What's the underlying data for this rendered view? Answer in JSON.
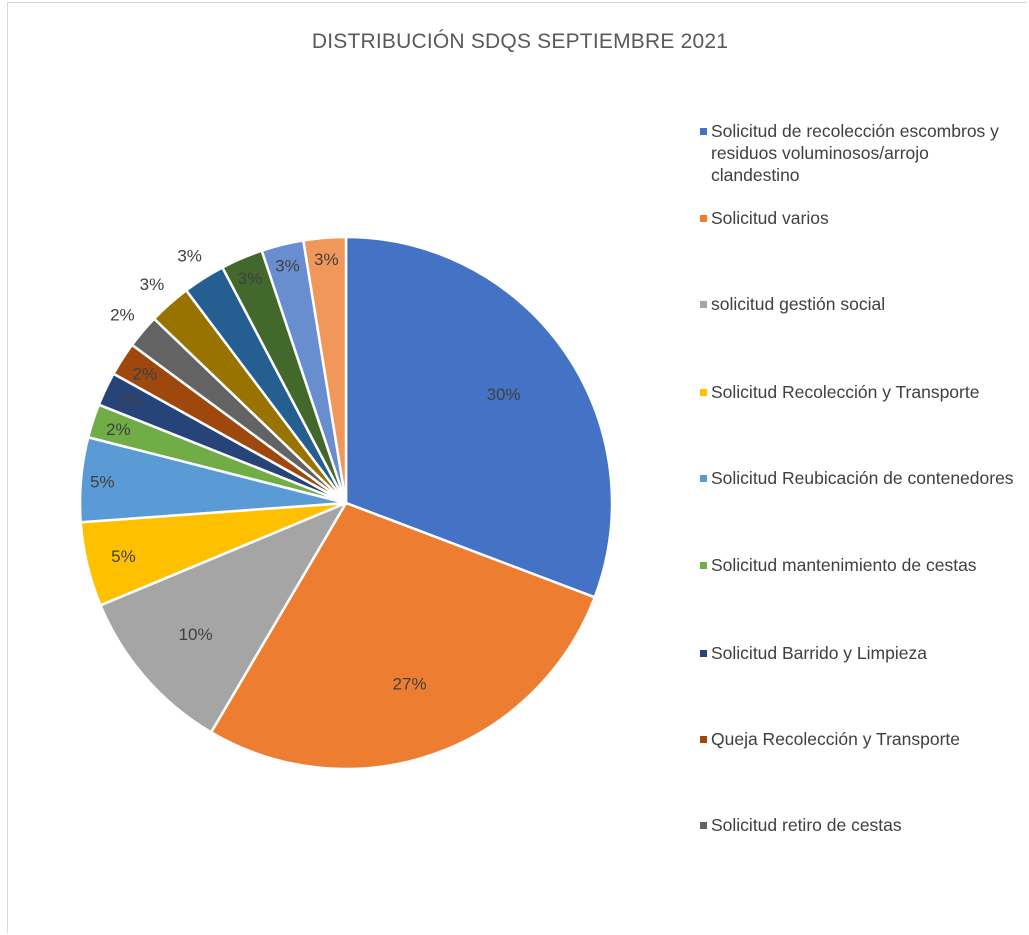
{
  "chart_data": {
    "type": "pie",
    "title": "DISTRIBUCIÓN SDQS SEPTIEMBRE 2021",
    "legend_position": "right",
    "slices": [
      {
        "name": "Solicitud de recolección escombros y residuos voluminosos/arrojo clandestino",
        "value": 30,
        "label": "30%",
        "color": "#4472C4"
      },
      {
        "name": "Solicitud varios",
        "value": 27,
        "label": "27%",
        "color": "#ED7D31"
      },
      {
        "name": "solicitud gestión social",
        "value": 10,
        "label": "10%",
        "color": "#A5A5A5"
      },
      {
        "name": "Solicitud Recolección y Transporte",
        "value": 5,
        "label": "5%",
        "color": "#FFC000"
      },
      {
        "name": "Solicitud Reubicación de contenedores",
        "value": 5,
        "label": "5%",
        "color": "#5B9BD5"
      },
      {
        "name": "Solicitud mantenimiento de cestas",
        "value": 2,
        "label": "2%",
        "color": "#70AD47"
      },
      {
        "name": "Solicitud Barrido y Limpieza",
        "value": 2,
        "label": "2%",
        "color": "#264478"
      },
      {
        "name": "Queja Recolección y Transporte",
        "value": 2,
        "label": "2%",
        "color": "#9E480E"
      },
      {
        "name": "Solicitud retiro de cestas",
        "value": 2,
        "label": "2%",
        "color": "#636363"
      },
      {
        "name": "",
        "value": 2.5,
        "label": "3%",
        "color": "#997300"
      },
      {
        "name": "",
        "value": 2.5,
        "label": "3%",
        "color": "#255E91"
      },
      {
        "name": "",
        "value": 2.5,
        "label": "3%",
        "color": "#43682B"
      },
      {
        "name": "",
        "value": 2.5,
        "label": "3%",
        "color": "#698ED0"
      },
      {
        "name": "",
        "value": 2.5,
        "label": "3%",
        "color": "#F1975A"
      }
    ],
    "legend": [
      {
        "text": "Solicitud de recolección escombros y residuos voluminosos/arrojo clandestino",
        "color": "#4472C4"
      },
      {
        "text": "Solicitud varios",
        "color": "#ED7D31"
      },
      {
        "text": "solicitud gestión social",
        "color": "#A5A5A5"
      },
      {
        "text": "Solicitud Recolección y Transporte",
        "color": "#FFC000"
      },
      {
        "text": "Solicitud Reubicación de contenedores",
        "color": "#5B9BD5"
      },
      {
        "text": "Solicitud mantenimiento de cestas",
        "color": "#70AD47"
      },
      {
        "text": "Solicitud Barrido y Limpieza",
        "color": "#264478"
      },
      {
        "text": "Queja Recolección y Transporte",
        "color": "#9E480E"
      },
      {
        "text": "Solicitud retiro de cestas",
        "color": "#636363"
      }
    ]
  }
}
